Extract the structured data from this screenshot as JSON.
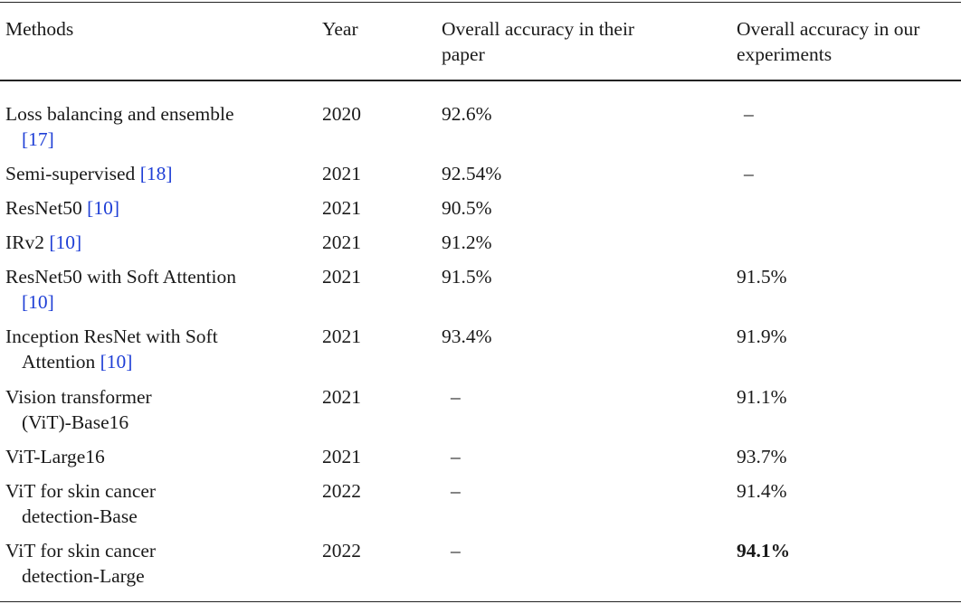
{
  "table": {
    "headers": {
      "methods": "Methods",
      "year": "Year",
      "paper_acc_line1": "Overall accuracy in their",
      "paper_acc_line2": "paper",
      "our_acc_line1": "Overall accuracy in our",
      "our_acc_line2": "experiments"
    },
    "rows": [
      {
        "method_line1": "Loss balancing and ensemble",
        "method_line2_pre": "",
        "ref": "[17]",
        "year": "2020",
        "paper": "92.6%",
        "ours": "–"
      },
      {
        "method_line1": "Semi-supervised",
        "ref": "[18]",
        "year": "2021",
        "paper": "92.54%",
        "ours": "–"
      },
      {
        "method_line1": "ResNet50",
        "ref": "[10]",
        "year": "2021",
        "paper": "90.5%",
        "ours": ""
      },
      {
        "method_line1": "IRv2",
        "ref": "[10]",
        "year": "2021",
        "paper": "91.2%",
        "ours": ""
      },
      {
        "method_line1": "ResNet50 with Soft Attention",
        "ref": "[10]",
        "year": "2021",
        "paper": "91.5%",
        "ours": "91.5%"
      },
      {
        "method_line1": "Inception ResNet with Soft",
        "method_line2_pre": "Attention",
        "ref": "[10]",
        "year": "2021",
        "paper": "93.4%",
        "ours": "91.9%"
      },
      {
        "method_line1": "Vision transformer",
        "method_line2": "(ViT)-Base16",
        "year": "2021",
        "paper": "–",
        "ours": "91.1%"
      },
      {
        "method_line1": "ViT-Large16",
        "year": "2021",
        "paper": "–",
        "ours": "93.7%"
      },
      {
        "method_line1": "ViT for skin cancer",
        "method_line2": "detection-Base",
        "year": "2022",
        "paper": "–",
        "ours": "91.4%"
      },
      {
        "method_line1": "ViT for skin cancer",
        "method_line2": "detection-Large",
        "year": "2022",
        "paper": "–",
        "ours": "94.1%"
      }
    ]
  }
}
